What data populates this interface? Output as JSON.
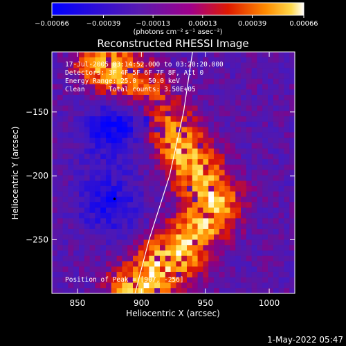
{
  "chart_data": {
    "type": "heatmap",
    "title": "Reconstructed RHESSI Image",
    "xlabel": "Heliocentric X (arcsec)",
    "ylabel": "Heliocentric Y (arcsec)",
    "xlim": [
      830,
      1020
    ],
    "ylim": [
      -292,
      -103
    ],
    "x_ticks": [
      850,
      900,
      950,
      1000
    ],
    "y_ticks": [
      -150,
      -200,
      -250
    ],
    "colorbar": {
      "range": [
        -0.00066,
        0.00066
      ],
      "tick_values": [
        -0.00066,
        -0.00039,
        -0.00013,
        0.00013,
        0.00039,
        0.00066
      ],
      "tick_labels": [
        "−0.00066",
        "−0.00039",
        "−0.00013",
        "0.00013",
        "0.00039",
        "0.00066"
      ],
      "unit_label": "(photons cm⁻² s⁻¹ asec⁻²)"
    },
    "annotations": [
      "17-Jul-2005 03:14:52.000 to 03:20:20.000",
      "Detectors: 3F 4F 5F 6F 7F 8F, Att 0",
      "Energy Range: 25.0 - 50.0 keV",
      "Clean      Total counts: 3.50E+05"
    ],
    "peak_label": "Position of Peak = [907, -256]",
    "peak_position": [
      907,
      -256
    ],
    "emission_ridge": [
      [
        870,
        -112
      ],
      [
        900,
        -135
      ],
      [
        932,
        -178
      ],
      [
        958,
        -222
      ],
      [
        928,
        -264
      ],
      [
        895,
        -290
      ]
    ],
    "limb_arc": [
      [
        940,
        -103
      ],
      [
        933,
        -150
      ],
      [
        922,
        -200
      ],
      [
        906,
        -250
      ],
      [
        895,
        -292
      ]
    ],
    "negative_lobes": [
      [
        876,
        -165
      ],
      [
        875,
        -222
      ],
      [
        900,
        -150
      ]
    ],
    "marker": [
      879,
      -218
    ]
  },
  "footer": {
    "timestamp": "1-May-2022 05:47"
  }
}
